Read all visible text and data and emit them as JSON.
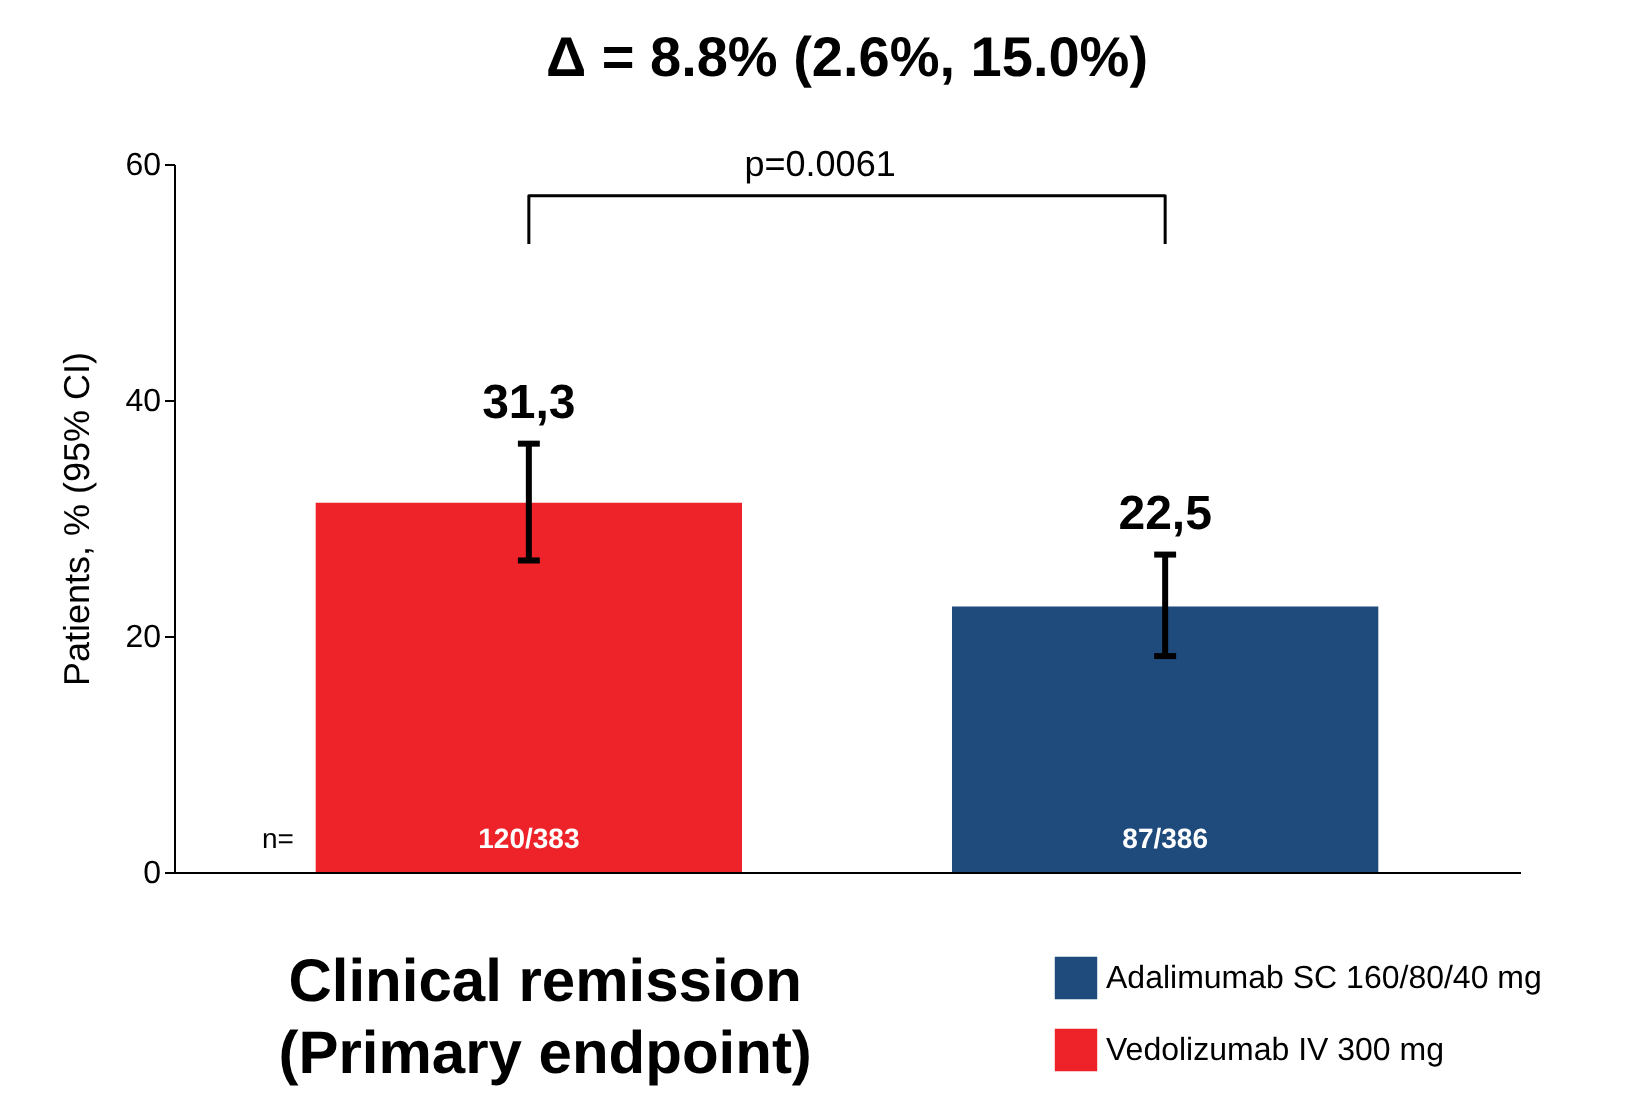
{
  "chart_data": {
    "type": "bar",
    "title": "Δ = 8.8% (2.6%, 15.0%)",
    "ylabel": "Patients, % (95% CI)",
    "xlabel": "Clinical remission\n(Primary endpoint)",
    "categories": [
      null
    ],
    "series": [
      {
        "name": "Vedolizumab IV 300 mg",
        "color": "#ee2229",
        "values": [
          31.3
        ],
        "errors": [
          [
            26.4,
            36.3
          ]
        ],
        "value_labels": [
          "31,3"
        ]
      },
      {
        "name": "Adalimumab SC 160/80/40 mg",
        "color": "#1e4a7c",
        "values": [
          22.5
        ],
        "errors": [
          [
            18.3,
            26.9
          ]
        ],
        "value_labels": [
          "22,5"
        ]
      }
    ],
    "annotations": [
      "p=0.0061",
      "n=",
      "120/383",
      "87/386"
    ],
    "ylim": [
      0,
      60
    ],
    "yticks": [
      0,
      20,
      40,
      60
    ],
    "grid": false,
    "legend": "bottom right"
  }
}
